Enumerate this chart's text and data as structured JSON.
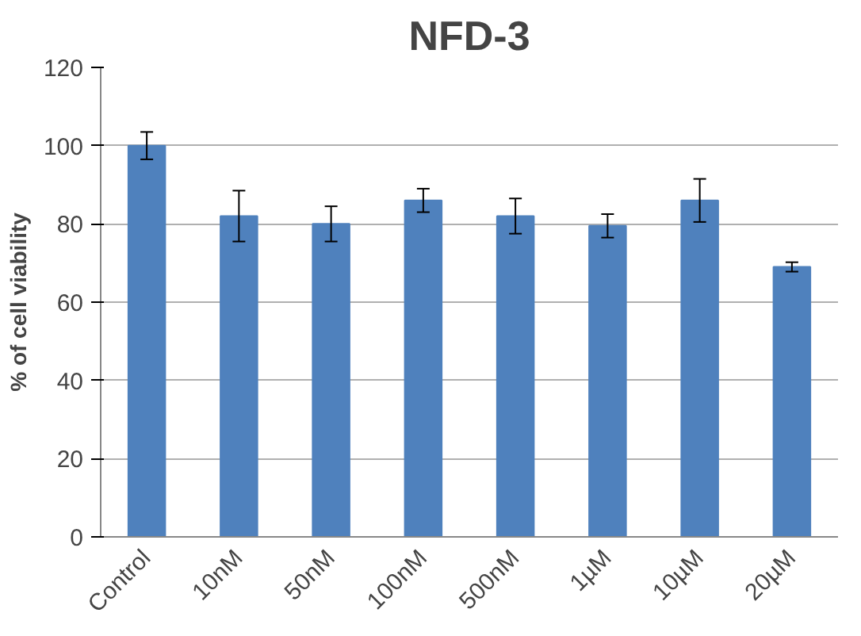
{
  "chart_data": {
    "type": "bar",
    "title": "NFD-3",
    "ylabel": "% of cell viability",
    "categories": [
      "Control",
      "10nM",
      "50nM",
      "100nM",
      "500nM",
      "1µM",
      "10µM",
      "20µM"
    ],
    "values": [
      100,
      82,
      80,
      86,
      82,
      79.5,
      86,
      69
    ],
    "errors": [
      3.5,
      6.5,
      4.5,
      3,
      4.5,
      3,
      5.5,
      1.2
    ],
    "color": "#4f81bd",
    "ylim": [
      0,
      120
    ],
    "yticks": [
      0,
      20,
      40,
      60,
      80,
      100,
      120
    ],
    "grid": "y"
  }
}
